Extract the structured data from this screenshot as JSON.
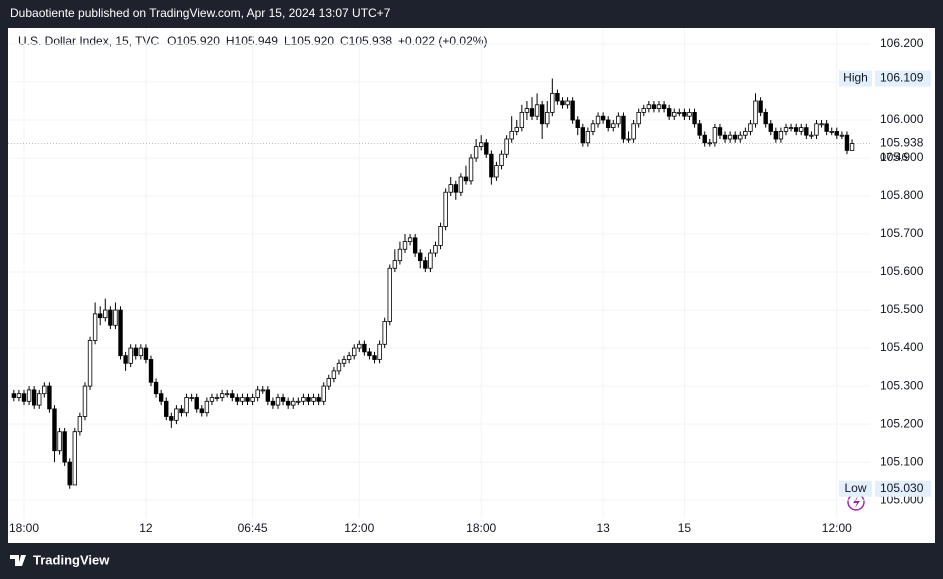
{
  "header": {
    "publisher": "Dubaotiente published on TradingView.com, Apr 15, 2024 13:07 UTC+7"
  },
  "footer": {
    "brand": "TradingView"
  },
  "chart_data": {
    "type": "candlestick",
    "legend": {
      "symbol": "U.S. Dollar Index, 15, TVC",
      "open": "O105.920",
      "high": "H105.949",
      "low": "L105.920",
      "close": "C105.938",
      "change": "+0.022 (+0.02%)"
    },
    "categories": [
      null,
      null,
      "18:00",
      null,
      null,
      null,
      null,
      null,
      null,
      null,
      null,
      null,
      null,
      null,
      null,
      null,
      null,
      null,
      null,
      null,
      null,
      null,
      null,
      null,
      null,
      null,
      "12",
      null,
      null,
      null,
      null,
      null,
      null,
      null,
      null,
      null,
      null,
      null,
      null,
      null,
      null,
      null,
      null,
      null,
      null,
      null,
      null,
      "06:45",
      null,
      null,
      null,
      null,
      null,
      null,
      null,
      null,
      null,
      null,
      null,
      null,
      null,
      null,
      null,
      null,
      null,
      null,
      null,
      null,
      "12:00",
      null,
      null,
      null,
      null,
      null,
      null,
      null,
      null,
      null,
      null,
      null,
      null,
      null,
      null,
      null,
      null,
      null,
      null,
      null,
      null,
      null,
      null,
      null,
      "18:00",
      null,
      null,
      null,
      null,
      null,
      null,
      null,
      null,
      null,
      null,
      null,
      null,
      null,
      null,
      null,
      null,
      null,
      null,
      null,
      null,
      null,
      null,
      null,
      "13",
      null,
      null,
      null,
      null,
      null,
      null,
      null,
      null,
      null,
      null,
      null,
      null,
      null,
      null,
      null,
      "15",
      null,
      null,
      null,
      null,
      null,
      null,
      null,
      null,
      null,
      null,
      null,
      null,
      null,
      null,
      null,
      null,
      null,
      null,
      null,
      null,
      null,
      null,
      null,
      null,
      null,
      null,
      null,
      null,
      null,
      "12:00",
      null,
      null,
      null
    ],
    "open": [
      105.28,
      105.27,
      105.28,
      105.26,
      105.29,
      105.25,
      105.28,
      105.3,
      105.24,
      105.13,
      105.18,
      105.1,
      105.04,
      105.18,
      105.22,
      105.3,
      105.42,
      105.49,
      105.48,
      105.5,
      105.46,
      105.5,
      105.38,
      105.36,
      105.4,
      105.38,
      105.4,
      105.37,
      105.31,
      105.28,
      105.26,
      105.22,
      105.21,
      105.24,
      105.23,
      105.27,
      105.27,
      105.24,
      105.23,
      105.26,
      105.27,
      105.27,
      105.28,
      105.28,
      105.27,
      105.26,
      105.27,
      105.26,
      105.27,
      105.29,
      105.29,
      105.26,
      105.25,
      105.27,
      105.26,
      105.25,
      105.26,
      105.26,
      105.27,
      105.26,
      105.27,
      105.26,
      105.3,
      105.32,
      105.34,
      105.36,
      105.37,
      105.38,
      105.4,
      105.41,
      105.39,
      105.38,
      105.37,
      105.41,
      105.47,
      105.61,
      105.63,
      105.66,
      105.68,
      105.69,
      105.65,
      105.63,
      105.61,
      105.65,
      105.67,
      105.72,
      105.81,
      105.83,
      105.81,
      105.85,
      105.84,
      105.9,
      105.93,
      105.94,
      105.91,
      105.85,
      105.88,
      105.91,
      105.95,
      105.97,
      105.98,
      106.02,
      106.03,
      106.01,
      106.04,
      105.99,
      106.02,
      106.07,
      106.05,
      106.04,
      106.05,
      106.0,
      105.98,
      105.94,
      105.97,
      105.99,
      106.01,
      106.0,
      105.98,
      105.99,
      106.01,
      105.95,
      105.95,
      105.99,
      106.02,
      106.03,
      106.04,
      106.03,
      106.04,
      106.03,
      106.01,
      106.02,
      106.02,
      106.01,
      106.02,
      105.99,
      105.96,
      105.94,
      105.94,
      105.98,
      105.96,
      105.95,
      105.96,
      105.95,
      105.96,
      105.97,
      105.99,
      106.05,
      106.02,
      105.99,
      105.97,
      105.95,
      105.97,
      105.98,
      105.98,
      105.97,
      105.98,
      105.96,
      105.96,
      105.99,
      105.99,
      105.97,
      105.97,
      105.96,
      105.96,
      105.92
    ],
    "high": [
      105.29,
      105.29,
      105.29,
      105.3,
      105.3,
      105.29,
      105.31,
      105.31,
      105.25,
      105.19,
      105.19,
      105.11,
      105.19,
      105.23,
      105.31,
      105.43,
      105.52,
      105.51,
      105.53,
      105.51,
      105.52,
      105.51,
      105.39,
      105.41,
      105.41,
      105.41,
      105.41,
      105.38,
      105.32,
      105.29,
      105.27,
      105.23,
      105.25,
      105.25,
      105.28,
      105.28,
      105.28,
      105.25,
      105.27,
      105.28,
      105.28,
      105.29,
      105.29,
      105.29,
      105.28,
      105.28,
      105.28,
      105.28,
      105.3,
      105.3,
      105.3,
      105.27,
      105.28,
      105.28,
      105.27,
      105.27,
      105.27,
      105.28,
      105.28,
      105.28,
      105.28,
      105.31,
      105.33,
      105.35,
      105.37,
      105.38,
      105.39,
      105.41,
      105.42,
      105.42,
      105.4,
      105.39,
      105.42,
      105.48,
      105.62,
      105.66,
      105.68,
      105.7,
      105.7,
      105.7,
      105.66,
      105.64,
      105.66,
      105.68,
      105.73,
      105.82,
      105.85,
      105.84,
      105.86,
      105.88,
      105.91,
      105.95,
      105.96,
      105.95,
      105.92,
      105.89,
      105.92,
      105.96,
      106.01,
      106.0,
      106.04,
      106.05,
      106.06,
      106.07,
      106.05,
      106.05,
      106.109,
      106.08,
      106.06,
      106.06,
      106.06,
      106.01,
      105.99,
      105.98,
      106.0,
      106.02,
      106.02,
      106.01,
      106.0,
      106.02,
      106.02,
      105.97,
      106.0,
      106.03,
      106.04,
      106.05,
      106.05,
      106.05,
      106.05,
      106.04,
      106.03,
      106.03,
      106.03,
      106.03,
      106.03,
      106.0,
      105.97,
      105.95,
      105.99,
      105.99,
      105.97,
      105.97,
      105.97,
      105.97,
      105.98,
      106.0,
      106.07,
      106.06,
      106.03,
      106.0,
      105.98,
      105.98,
      105.99,
      105.99,
      105.99,
      105.99,
      105.99,
      105.97,
      106.0,
      106.0,
      106.0,
      105.98,
      105.98,
      105.97,
      105.97,
      105.949
    ],
    "low": [
      105.26,
      105.26,
      105.25,
      105.25,
      105.24,
      105.24,
      105.27,
      105.23,
      105.1,
      105.12,
      105.09,
      105.03,
      105.04,
      105.17,
      105.21,
      105.29,
      105.41,
      105.46,
      105.47,
      105.45,
      105.45,
      105.37,
      105.34,
      105.35,
      105.37,
      105.37,
      105.36,
      105.3,
      105.27,
      105.25,
      105.21,
      105.19,
      105.2,
      105.22,
      105.22,
      105.26,
      105.23,
      105.22,
      105.22,
      105.25,
      105.26,
      105.26,
      105.27,
      105.26,
      105.25,
      105.25,
      105.25,
      105.25,
      105.26,
      105.28,
      105.25,
      105.24,
      105.24,
      105.25,
      105.24,
      105.24,
      105.25,
      105.25,
      105.25,
      105.25,
      105.25,
      105.25,
      105.29,
      105.31,
      105.33,
      105.35,
      105.36,
      105.37,
      105.39,
      105.38,
      105.37,
      105.36,
      105.36,
      105.4,
      105.46,
      105.6,
      105.62,
      105.65,
      105.67,
      105.64,
      105.61,
      105.6,
      105.6,
      105.64,
      105.66,
      105.71,
      105.8,
      105.79,
      105.8,
      105.83,
      105.83,
      105.89,
      105.92,
      105.9,
      105.83,
      105.84,
      105.87,
      105.9,
      105.94,
      105.96,
      105.97,
      106.0,
      106.0,
      106.0,
      105.95,
      105.98,
      106.01,
      106.04,
      106.03,
      106.03,
      105.99,
      105.96,
      105.93,
      105.93,
      105.96,
      105.98,
      105.99,
      105.97,
      105.97,
      105.98,
      105.94,
      105.94,
      105.94,
      105.98,
      106.01,
      106.02,
      106.02,
      106.02,
      106.02,
      106.0,
      106.0,
      106.01,
      106.0,
      106.0,
      105.98,
      105.95,
      105.93,
      105.93,
      105.93,
      105.95,
      105.94,
      105.94,
      105.94,
      105.94,
      105.95,
      105.96,
      105.98,
      106.01,
      105.98,
      105.96,
      105.94,
      105.94,
      105.96,
      105.97,
      105.96,
      105.96,
      105.95,
      105.95,
      105.95,
      105.98,
      105.96,
      105.96,
      105.95,
      105.95,
      105.91,
      105.92
    ],
    "close": [
      105.27,
      105.28,
      105.26,
      105.29,
      105.25,
      105.28,
      105.3,
      105.24,
      105.13,
      105.18,
      105.1,
      105.04,
      105.18,
      105.22,
      105.3,
      105.42,
      105.49,
      105.48,
      105.5,
      105.46,
      105.5,
      105.38,
      105.36,
      105.4,
      105.38,
      105.4,
      105.37,
      105.31,
      105.28,
      105.26,
      105.22,
      105.21,
      105.24,
      105.23,
      105.27,
      105.27,
      105.24,
      105.23,
      105.26,
      105.27,
      105.27,
      105.28,
      105.28,
      105.27,
      105.26,
      105.27,
      105.26,
      105.27,
      105.29,
      105.29,
      105.26,
      105.25,
      105.27,
      105.26,
      105.25,
      105.26,
      105.26,
      105.27,
      105.26,
      105.27,
      105.26,
      105.3,
      105.32,
      105.34,
      105.36,
      105.37,
      105.38,
      105.4,
      105.41,
      105.39,
      105.38,
      105.37,
      105.41,
      105.47,
      105.61,
      105.63,
      105.66,
      105.68,
      105.69,
      105.65,
      105.63,
      105.61,
      105.65,
      105.67,
      105.72,
      105.81,
      105.83,
      105.81,
      105.85,
      105.84,
      105.9,
      105.93,
      105.94,
      105.91,
      105.85,
      105.88,
      105.91,
      105.95,
      105.97,
      105.98,
      106.02,
      106.03,
      106.01,
      106.04,
      105.99,
      106.02,
      106.07,
      106.05,
      106.04,
      106.05,
      106.0,
      105.98,
      105.94,
      105.97,
      105.99,
      106.01,
      106.0,
      105.98,
      105.99,
      106.01,
      105.95,
      105.95,
      105.99,
      106.02,
      106.03,
      106.04,
      106.03,
      106.04,
      106.03,
      106.01,
      106.02,
      106.02,
      106.01,
      106.02,
      105.99,
      105.96,
      105.94,
      105.94,
      105.98,
      105.96,
      105.95,
      105.96,
      105.95,
      105.96,
      105.97,
      105.99,
      106.05,
      106.02,
      105.99,
      105.97,
      105.95,
      105.97,
      105.98,
      105.98,
      105.97,
      105.98,
      105.96,
      105.96,
      105.99,
      105.99,
      105.97,
      105.97,
      105.96,
      105.96,
      105.92,
      105.938
    ],
    "up_color": "#ffffff",
    "down_color": "#000000",
    "wick_color": "#000000",
    "ylim": [
      104.953,
      106.242
    ],
    "yticks": [
      {
        "value": 105.0,
        "label": "105.000"
      },
      {
        "value": 105.1,
        "label": "105.100"
      },
      {
        "value": 105.2,
        "label": "105.200"
      },
      {
        "value": 105.3,
        "label": "105.300"
      },
      {
        "value": 105.4,
        "label": "105.400"
      },
      {
        "value": 105.5,
        "label": "105.500"
      },
      {
        "value": 105.6,
        "label": "105.600"
      },
      {
        "value": 105.7,
        "label": "105.700"
      },
      {
        "value": 105.8,
        "label": "105.800"
      },
      {
        "value": 105.9,
        "label": "105.900"
      },
      {
        "value": 106.0,
        "label": "106.000"
      },
      {
        "value": 106.1,
        "label": "106.100"
      },
      {
        "value": 106.2,
        "label": "106.200"
      }
    ],
    "grid": true,
    "high_marker": {
      "name": "High",
      "label": "106.109"
    },
    "low_marker": {
      "name": "Low",
      "label": "105.030"
    },
    "last_marker": {
      "label": "105.938",
      "countdown": "07:46"
    }
  }
}
